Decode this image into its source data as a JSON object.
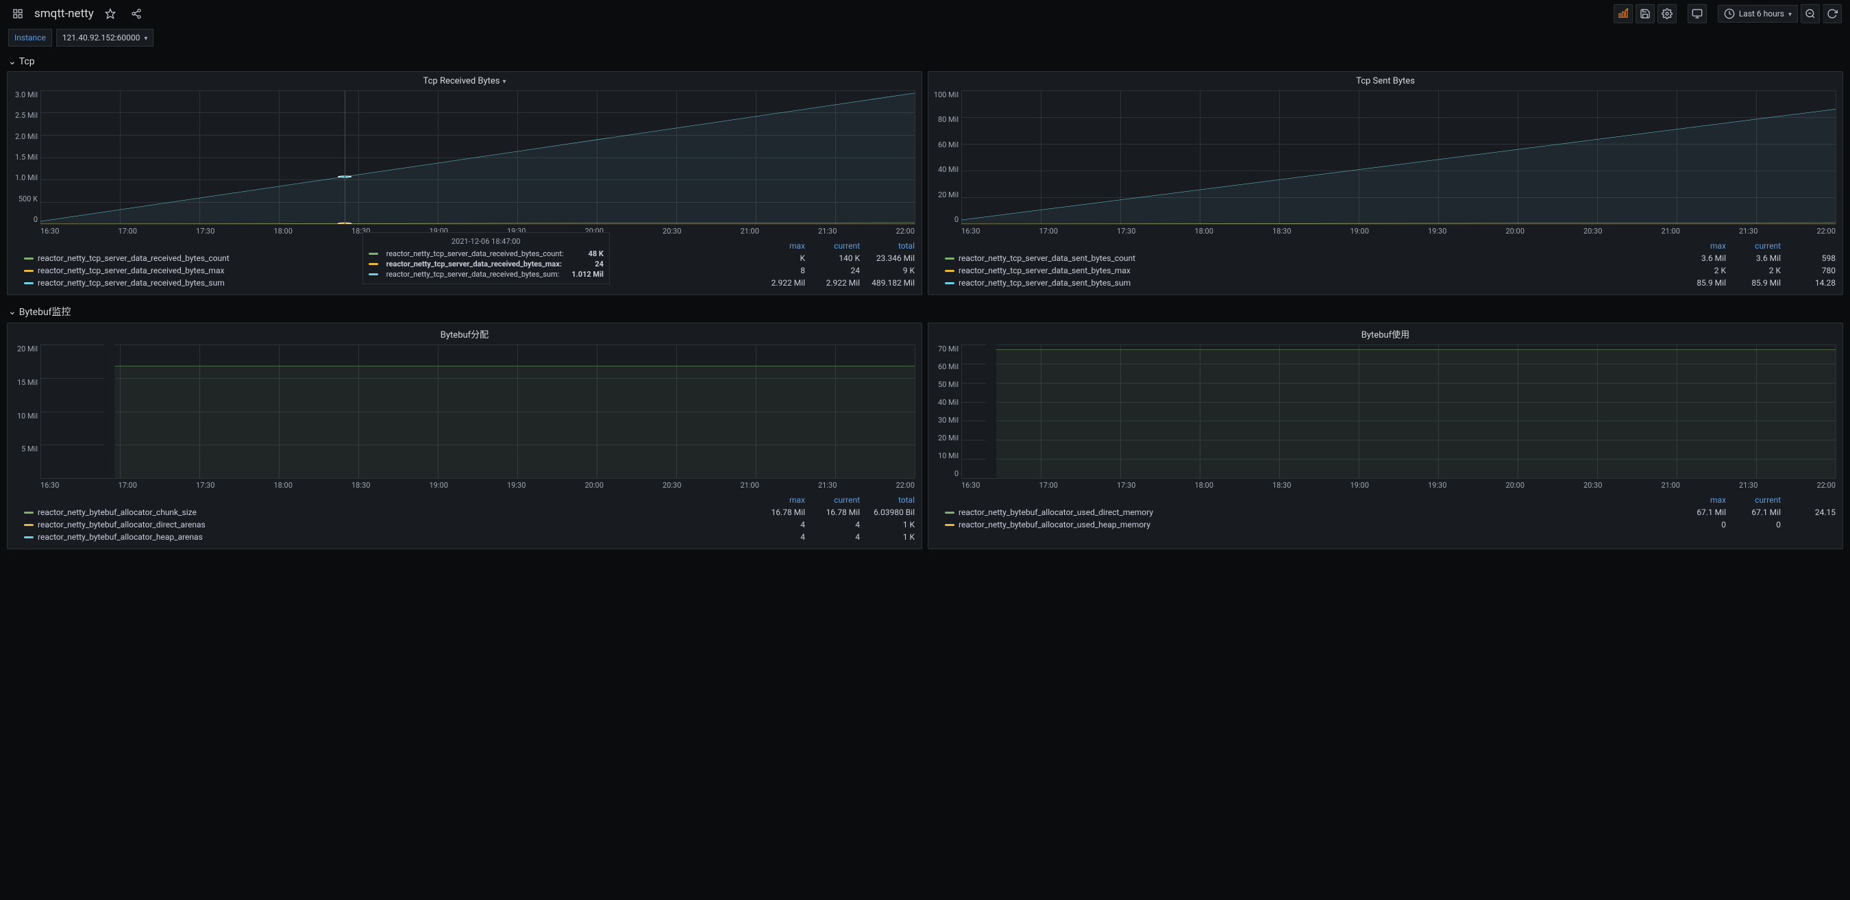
{
  "header": {
    "title": "smqtt-netty",
    "time_label": "Last 6 hours"
  },
  "variable": {
    "label": "Instance",
    "value": "121.40.92.152:60000"
  },
  "rows": [
    {
      "title": "Tcp"
    },
    {
      "title": "Bytebuf监控"
    }
  ],
  "colors": {
    "green": "#7eb26d",
    "yellow": "#eab839",
    "cyan": "#6ed0e0",
    "blue_link": "#579ce4",
    "grid": "#2c3235",
    "bg_panel": "#181b1f",
    "crosshair": "#c4162a"
  },
  "panels": {
    "tcp_recv": {
      "title": "Tcp Received Bytes",
      "y_ticks": [
        "3.0 Mil",
        "2.5 Mil",
        "2.0 Mil",
        "1.5 Mil",
        "1.0 Mil",
        "500 K",
        "0"
      ],
      "x_ticks": [
        "16:30",
        "17:00",
        "17:30",
        "18:00",
        "18:30",
        "19:00",
        "19:30",
        "20:00",
        "20:30",
        "21:00",
        "21:30",
        "22:00"
      ],
      "crosshair_pct": 34.8,
      "lines": [
        {
          "name": "count",
          "color": "#7eb26d",
          "y1_pct": 100,
          "y2_pct": 99
        },
        {
          "name": "max",
          "color": "#eab839",
          "y1_pct": 100,
          "y2_pct": 100
        },
        {
          "name": "sum",
          "color": "#6ed0e0",
          "y1_pct": 98,
          "y2_pct": 2
        }
      ],
      "tooltip": {
        "time": "2021-12-06 18:47:00",
        "rows": [
          {
            "color": "#7eb26d",
            "name": "reactor_netty_tcp_server_data_received_bytes_count:",
            "val": "48 K",
            "hl": false
          },
          {
            "color": "#eab839",
            "name": "reactor_netty_tcp_server_data_received_bytes_max:",
            "val": "24",
            "hl": true
          },
          {
            "color": "#6ed0e0",
            "name": "reactor_netty_tcp_server_data_received_bytes_sum:",
            "val": "1.012 Mil",
            "hl": false
          }
        ]
      },
      "legend_cols": [
        "max",
        "current",
        "total"
      ],
      "legend": [
        {
          "color": "#7eb26d",
          "name": "reactor_netty_tcp_server_data_received_bytes_count",
          "vals": [
            "K",
            "140 K",
            "23.346 Mil"
          ]
        },
        {
          "color": "#eab839",
          "name": "reactor_netty_tcp_server_data_received_bytes_max",
          "vals": [
            "8",
            "24",
            "9 K"
          ]
        },
        {
          "color": "#6ed0e0",
          "name": "reactor_netty_tcp_server_data_received_bytes_sum",
          "vals": [
            "2.922 Mil",
            "2.922 Mil",
            "489.182 Mil"
          ]
        }
      ]
    },
    "tcp_sent": {
      "title": "Tcp Sent Bytes",
      "y_ticks": [
        "100 Mil",
        "80 Mil",
        "60 Mil",
        "40 Mil",
        "20 Mil",
        "0"
      ],
      "x_ticks": [
        "16:30",
        "17:00",
        "17:30",
        "18:00",
        "18:30",
        "19:00",
        "19:30",
        "20:00",
        "20:30",
        "21:00",
        "21:30",
        "22:00"
      ],
      "lines": [
        {
          "name": "count",
          "color": "#7eb26d",
          "y1_pct": 100,
          "y2_pct": 99
        },
        {
          "name": "max",
          "color": "#eab839",
          "y1_pct": 100,
          "y2_pct": 100
        },
        {
          "name": "sum",
          "color": "#6ed0e0",
          "y1_pct": 97,
          "y2_pct": 14
        }
      ],
      "legend_cols": [
        "max",
        "current",
        ""
      ],
      "legend": [
        {
          "color": "#7eb26d",
          "name": "reactor_netty_tcp_server_data_sent_bytes_count",
          "vals": [
            "3.6 Mil",
            "3.6 Mil",
            "598"
          ]
        },
        {
          "color": "#eab839",
          "name": "reactor_netty_tcp_server_data_sent_bytes_max",
          "vals": [
            "2 K",
            "2 K",
            "780"
          ]
        },
        {
          "color": "#6ed0e0",
          "name": "reactor_netty_tcp_server_data_sent_bytes_sum",
          "vals": [
            "85.9 Mil",
            "85.9 Mil",
            "14.28"
          ]
        }
      ]
    },
    "bb_alloc": {
      "title": "Bytebuf分配",
      "y_ticks": [
        "20 Mil",
        "15 Mil",
        "10 Mil",
        "5 Mil",
        ""
      ],
      "x_ticks": [
        "16:30",
        "17:00",
        "17:30",
        "18:00",
        "18:30",
        "19:00",
        "19:30",
        "20:00",
        "20:30",
        "21:00",
        "21:30",
        "22:00"
      ],
      "lines": [
        {
          "name": "chunk",
          "color": "#7eb26d",
          "y1_pct": 16,
          "y2_pct": 16
        }
      ],
      "break_pct": 8.5,
      "legend_cols": [
        "max",
        "current",
        "total"
      ],
      "legend": [
        {
          "color": "#7eb26d",
          "name": "reactor_netty_bytebuf_allocator_chunk_size",
          "vals": [
            "16.78 Mil",
            "16.78 Mil",
            "6.03980 Bil"
          ]
        },
        {
          "color": "#eab839",
          "name": "reactor_netty_bytebuf_allocator_direct_arenas",
          "vals": [
            "4",
            "4",
            "1 K"
          ]
        },
        {
          "color": "#6ed0e0",
          "name": "reactor_netty_bytebuf_allocator_heap_arenas",
          "vals": [
            "4",
            "4",
            "1 K"
          ]
        }
      ]
    },
    "bb_use": {
      "title": "Bytebuf使用",
      "y_ticks": [
        "70 Mil",
        "60 Mil",
        "50 Mil",
        "40 Mil",
        "30 Mil",
        "20 Mil",
        "10 Mil",
        "0"
      ],
      "x_ticks": [
        "16:30",
        "17:00",
        "17:30",
        "18:00",
        "18:30",
        "19:00",
        "19:30",
        "20:00",
        "20:30",
        "21:00",
        "21:30",
        "22:00"
      ],
      "lines": [
        {
          "name": "direct",
          "color": "#7eb26d",
          "y1_pct": 4,
          "y2_pct": 4
        }
      ],
      "break_pct": 4.0,
      "legend_cols": [
        "max",
        "current",
        ""
      ],
      "legend": [
        {
          "color": "#7eb26d",
          "name": "reactor_netty_bytebuf_allocator_used_direct_memory",
          "vals": [
            "67.1 Mil",
            "67.1 Mil",
            "24.15"
          ]
        },
        {
          "color": "#eab839",
          "name": "reactor_netty_bytebuf_allocator_used_heap_memory",
          "vals": [
            "0",
            "0",
            ""
          ]
        }
      ]
    }
  }
}
